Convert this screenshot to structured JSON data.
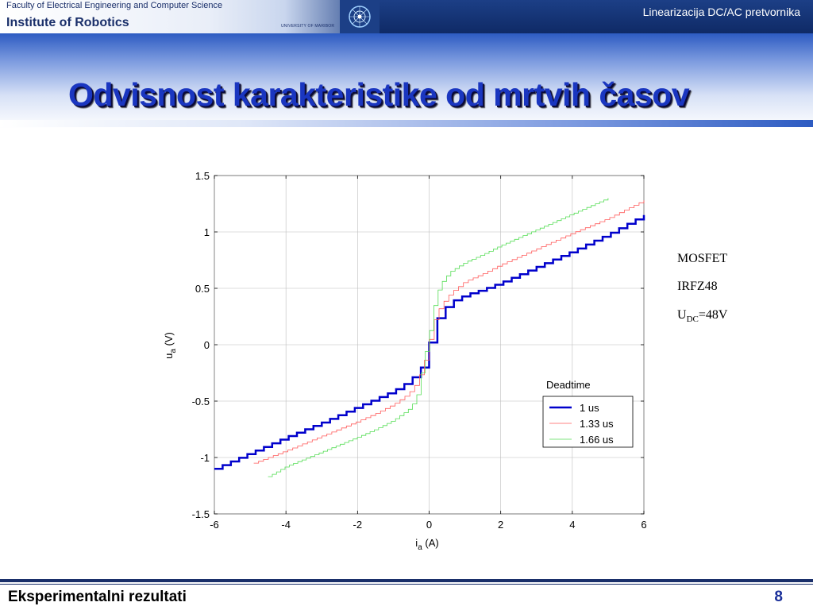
{
  "header": {
    "faculty": "Faculty of Electrical Engineering and Computer Science",
    "institute": "Institute of Robotics",
    "university": "UNIVERSITY OF MARIBOR",
    "presentation_title": "Linearizacija DC/AC pretvornika",
    "logo_icon": "university-logo-icon"
  },
  "slide": {
    "title": "Odvisnost karakteristike od mrtvih časov"
  },
  "notes": {
    "device": "MOSFET",
    "part": "IRFZ48",
    "voltage_main": "U",
    "voltage_sub": "DC",
    "voltage_value": "=48V"
  },
  "chart_data": {
    "type": "line",
    "xlabel_main": "i",
    "xlabel_sub": "a",
    "xlabel_unit": " (A)",
    "ylabel_main": "u",
    "ylabel_sub": "a",
    "ylabel_unit": " (V)",
    "xlim": [
      -6,
      6
    ],
    "ylim": [
      -1.5,
      1.5
    ],
    "xticks": [
      -6,
      -4,
      -2,
      0,
      2,
      4,
      6
    ],
    "yticks": [
      -1.5,
      -1,
      -0.5,
      0,
      0.5,
      1,
      1.5
    ],
    "xtick_labels": [
      "-6",
      "-4",
      "-2",
      "0",
      "2",
      "4",
      "6"
    ],
    "ytick_labels": [
      "-1.5",
      "-1",
      "-0.5",
      "0",
      "0.5",
      "1",
      "1.5"
    ],
    "grid": true,
    "legend": {
      "title": "Deadtime",
      "placement": "lower-right"
    },
    "series": [
      {
        "name": "1 us",
        "color": "#0000cc",
        "width": 2.5,
        "x": [
          -6,
          -5,
          -4,
          -3,
          -2,
          -1.5,
          -1,
          -0.6,
          -0.3,
          -0.1,
          0,
          0.1,
          0.3,
          0.6,
          1,
          1.5,
          2,
          3,
          4,
          5,
          6
        ],
        "y": [
          -1.1,
          -0.96,
          -0.82,
          -0.69,
          -0.55,
          -0.48,
          -0.41,
          -0.33,
          -0.24,
          -0.13,
          0.02,
          0.15,
          0.28,
          0.38,
          0.44,
          0.49,
          0.55,
          0.69,
          0.83,
          0.98,
          1.15
        ]
      },
      {
        "name": "1.33 us",
        "color": "#ff5a5a",
        "width": 0.8,
        "x": [
          -4.9,
          -4,
          -3,
          -2,
          -1.5,
          -1,
          -0.6,
          -0.4,
          -0.2,
          -0.1,
          0,
          0.1,
          0.2,
          0.4,
          0.6,
          1,
          1.5,
          2,
          3,
          4,
          5,
          6
        ],
        "y": [
          -1.05,
          -0.94,
          -0.81,
          -0.68,
          -0.61,
          -0.53,
          -0.44,
          -0.36,
          -0.22,
          -0.1,
          0.04,
          0.18,
          0.28,
          0.38,
          0.46,
          0.56,
          0.63,
          0.71,
          0.85,
          0.99,
          1.12,
          1.28
        ]
      },
      {
        "name": "1.66 us",
        "color": "#55dd55",
        "width": 0.8,
        "x": [
          -4.5,
          -4,
          -3,
          -2,
          -1.5,
          -1,
          -0.6,
          -0.4,
          -0.3,
          -0.2,
          -0.1,
          0,
          0.1,
          0.2,
          0.3,
          0.4,
          0.6,
          1,
          1.5,
          2,
          3,
          4,
          5
        ],
        "y": [
          -1.17,
          -1.08,
          -0.95,
          -0.82,
          -0.75,
          -0.67,
          -0.58,
          -0.5,
          -0.4,
          -0.2,
          -0.05,
          0.1,
          0.3,
          0.45,
          0.52,
          0.58,
          0.65,
          0.73,
          0.8,
          0.88,
          1.02,
          1.16,
          1.3
        ]
      }
    ]
  },
  "footer": {
    "section": "Eksperimentalni rezultati",
    "page": "8"
  }
}
